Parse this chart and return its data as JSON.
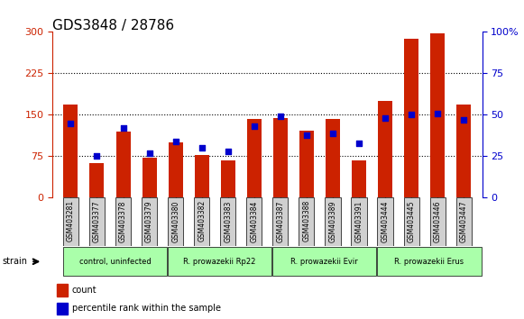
{
  "title": "GDS3848 / 28786",
  "samples": [
    "GSM403281",
    "GSM403377",
    "GSM403378",
    "GSM403379",
    "GSM403380",
    "GSM403382",
    "GSM403383",
    "GSM403384",
    "GSM403387",
    "GSM403388",
    "GSM403389",
    "GSM403391",
    "GSM403444",
    "GSM403445",
    "GSM403446",
    "GSM403447"
  ],
  "counts": [
    168,
    62,
    120,
    72,
    100,
    78,
    68,
    142,
    145,
    122,
    142,
    68,
    175,
    288,
    298,
    168
  ],
  "percentiles": [
    45,
    25,
    42,
    27,
    34,
    30,
    28,
    43,
    49,
    38,
    39,
    33,
    48,
    50,
    51,
    47
  ],
  "groups": [
    {
      "label": "control, uninfected",
      "start": 0,
      "end": 4,
      "color": "#aaffaa"
    },
    {
      "label": "R. prowazekii Rp22",
      "start": 4,
      "end": 8,
      "color": "#aaffaa"
    },
    {
      "label": "R. prowazekii Evir",
      "start": 8,
      "end": 12,
      "color": "#aaffaa"
    },
    {
      "label": "R. prowazekii Erus",
      "start": 12,
      "end": 16,
      "color": "#aaffaa"
    }
  ],
  "bar_color": "#cc2200",
  "dot_color": "#0000cc",
  "left_ylim": [
    0,
    300
  ],
  "right_ylim": [
    0,
    100
  ],
  "left_yticks": [
    0,
    75,
    150,
    225,
    300
  ],
  "right_yticks": [
    0,
    25,
    50,
    75,
    100
  ],
  "right_ytick_labels": [
    "0",
    "25",
    "50",
    "75",
    "100%"
  ],
  "background_plot": "#ffffff",
  "background_xticklabels": "#e0e0e0",
  "tick_color_left": "#cc2200",
  "tick_color_right": "#0000cc",
  "grid_color": "#000000",
  "figsize": [
    5.81,
    3.54
  ],
  "dpi": 100
}
